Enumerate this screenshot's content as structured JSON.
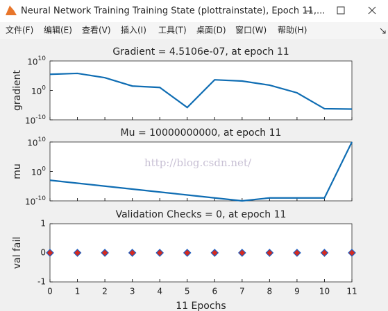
{
  "window": {
    "title": "Neural Network Training Training State (plottrainstate), Epoch 11,...",
    "menu": [
      "文件(F)",
      "编辑(E)",
      "查看(V)",
      "插入(I)",
      "工具(T)",
      "桌面(D)",
      "窗口(W)",
      "帮助(H)"
    ]
  },
  "watermark": "http://blog.csdn.net/",
  "chart_data": [
    {
      "type": "line",
      "title": "Gradient = 4.5106e-07, at epoch 11",
      "ylabel": "gradient",
      "log_scale": true,
      "color": "#0f6db3",
      "x": [
        0,
        1,
        2,
        3,
        4,
        5,
        6,
        7,
        8,
        9,
        10,
        11
      ],
      "values": [
        300000,
        600000,
        20000,
        30,
        10,
        1.6e-06,
        4000,
        1500,
        60,
        0.15,
        6e-07,
        4.5106e-07
      ],
      "xlim": [
        0,
        11
      ],
      "xticks": [
        0,
        1,
        2,
        3,
        4,
        5,
        6,
        7,
        8,
        9,
        10,
        11
      ],
      "ylim": [
        1e-10,
        10000000000.0
      ],
      "yticks": [
        {
          "value": 1e-10,
          "label": "10^-10"
        },
        {
          "value": 1,
          "label": "10^0"
        },
        {
          "value": 10000000000.0,
          "label": "10^10"
        }
      ]
    },
    {
      "type": "line",
      "title": "Mu = 10000000000, at epoch 11",
      "ylabel": "mu",
      "log_scale": true,
      "color": "#0f6db3",
      "x": [
        0,
        1,
        2,
        3,
        4,
        5,
        6,
        7,
        8,
        9,
        10,
        11
      ],
      "values": [
        0.001,
        0.0001,
        1e-05,
        1e-06,
        1e-07,
        1e-08,
        1e-09,
        1e-10,
        1e-09,
        1e-09,
        1e-09,
        10000000000
      ],
      "xlim": [
        0,
        11
      ],
      "xticks": [
        0,
        1,
        2,
        3,
        4,
        5,
        6,
        7,
        8,
        9,
        10,
        11
      ],
      "ylim": [
        1e-10,
        10000000000.0
      ],
      "yticks": [
        {
          "value": 1e-10,
          "label": "10^-10"
        },
        {
          "value": 1,
          "label": "10^0"
        },
        {
          "value": 10000000000.0,
          "label": "10^10"
        }
      ]
    },
    {
      "type": "scatter",
      "title": "Validation Checks = 0, at epoch 11",
      "ylabel": "val fail",
      "xlabel": "11 Epochs",
      "log_scale": false,
      "color": "#d42a20",
      "edge_color": "#1f5fc0",
      "x": [
        0,
        1,
        2,
        3,
        4,
        5,
        6,
        7,
        8,
        9,
        10,
        11
      ],
      "values": [
        0,
        0,
        0,
        0,
        0,
        0,
        0,
        0,
        0,
        0,
        0,
        0
      ],
      "xlim": [
        0,
        11
      ],
      "xticks": [
        0,
        1,
        2,
        3,
        4,
        5,
        6,
        7,
        8,
        9,
        10,
        11
      ],
      "ylim": [
        -1,
        1
      ],
      "yticks": [
        -1,
        0,
        1
      ]
    }
  ]
}
